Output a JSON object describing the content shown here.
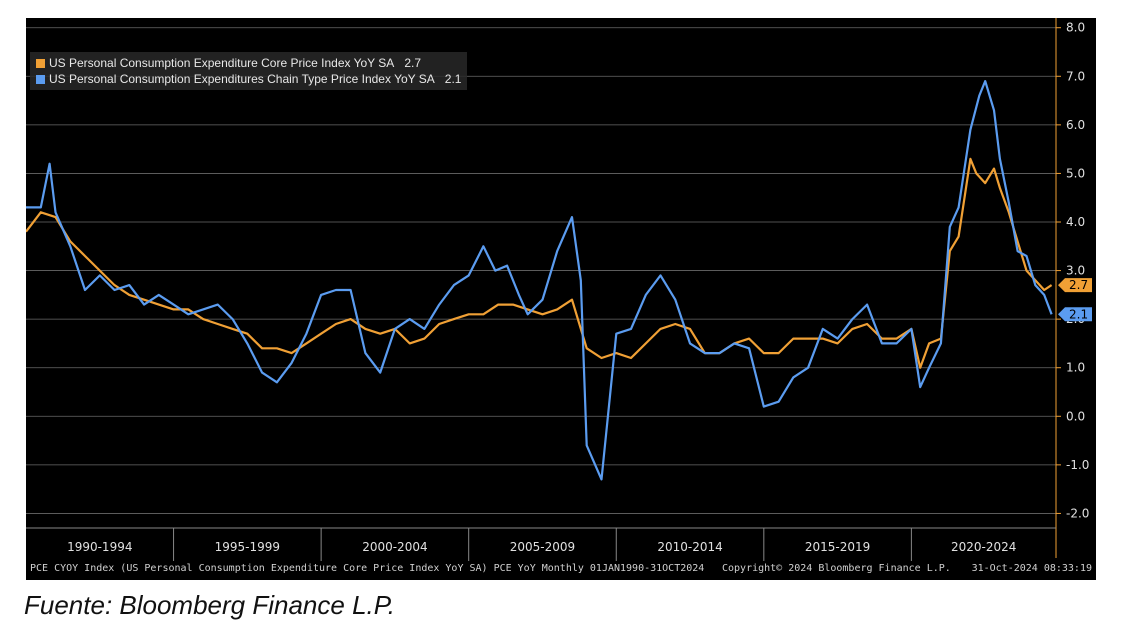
{
  "source_note": "Fuente: Bloomberg Finance L.P.",
  "footer": {
    "left": "PCE CYOY Index (US Personal Consumption Expenditure Core Price Index YoY SA) PCE YoY  Monthly 01JAN1990-31OCT2024",
    "middle": "Copyright© 2024 Bloomberg Finance L.P.",
    "right": "31-Oct-2024 08:33:19"
  },
  "colors": {
    "core": "#f0a035",
    "headline": "#5b9cf0",
    "background": "#000000",
    "grid": "#6a6a6a"
  },
  "chart_data": {
    "type": "line",
    "x_unit": "year",
    "xlim": [
      1990.0,
      2024.9
    ],
    "ylim": [
      -2.3,
      8.2
    ],
    "y_ticks": [
      8.0,
      7.0,
      6.0,
      5.0,
      4.0,
      3.0,
      2.0,
      1.0,
      0.0,
      -1.0,
      -2.0
    ],
    "y_tick_labels": [
      "8.0",
      "7.0",
      "6.0",
      "5.0",
      "4.0",
      "3.0",
      "2.0",
      "1.0",
      "0.0",
      "-1.0",
      "-2.0"
    ],
    "x_bands": [
      "1990-1994",
      "1995-1999",
      "2000-2004",
      "2005-2009",
      "2010-2014",
      "2015-2019",
      "2020-2024"
    ],
    "x_band_breaks": [
      1990,
      1995,
      2000,
      2005,
      2010,
      2015,
      2020,
      2025
    ],
    "grid": true,
    "legend_position": "top-left",
    "series": [
      {
        "name": "US Personal Consumption Expenditure Core Price Index YoY SA",
        "last_value": "2.7",
        "color": "#f0a035",
        "x": [
          1990.0,
          1990.5,
          1991.0,
          1991.5,
          1992.0,
          1992.5,
          1993.0,
          1993.5,
          1994.0,
          1994.5,
          1995.0,
          1995.5,
          1996.0,
          1996.5,
          1997.0,
          1997.5,
          1998.0,
          1998.5,
          1999.0,
          1999.5,
          2000.0,
          2000.5,
          2001.0,
          2001.5,
          2002.0,
          2002.5,
          2003.0,
          2003.5,
          2004.0,
          2004.5,
          2005.0,
          2005.5,
          2006.0,
          2006.5,
          2007.0,
          2007.5,
          2008.0,
          2008.5,
          2009.0,
          2009.5,
          2010.0,
          2010.5,
          2011.0,
          2011.5,
          2012.0,
          2012.5,
          2013.0,
          2013.5,
          2014.0,
          2014.5,
          2015.0,
          2015.5,
          2016.0,
          2016.5,
          2017.0,
          2017.5,
          2018.0,
          2018.5,
          2019.0,
          2019.5,
          2020.0,
          2020.3,
          2020.6,
          2021.0,
          2021.3,
          2021.6,
          2022.0,
          2022.2,
          2022.5,
          2022.8,
          2023.0,
          2023.3,
          2023.6,
          2023.9,
          2024.2,
          2024.5,
          2024.75
        ],
        "y": [
          3.8,
          4.2,
          4.1,
          3.6,
          3.3,
          3.0,
          2.7,
          2.5,
          2.4,
          2.3,
          2.2,
          2.2,
          2.0,
          1.9,
          1.8,
          1.7,
          1.4,
          1.4,
          1.3,
          1.5,
          1.7,
          1.9,
          2.0,
          1.8,
          1.7,
          1.8,
          1.5,
          1.6,
          1.9,
          2.0,
          2.1,
          2.1,
          2.3,
          2.3,
          2.2,
          2.1,
          2.2,
          2.4,
          1.4,
          1.2,
          1.3,
          1.2,
          1.5,
          1.8,
          1.9,
          1.8,
          1.3,
          1.3,
          1.5,
          1.6,
          1.3,
          1.3,
          1.6,
          1.6,
          1.6,
          1.5,
          1.8,
          1.9,
          1.6,
          1.6,
          1.8,
          1.0,
          1.5,
          1.6,
          3.4,
          3.7,
          5.3,
          5.0,
          4.8,
          5.1,
          4.7,
          4.2,
          3.6,
          3.0,
          2.8,
          2.6,
          2.7
        ]
      },
      {
        "name": "US Personal Consumption Expenditures Chain Type Price Index YoY SA",
        "last_value": "2.1",
        "color": "#5b9cf0",
        "x": [
          1990.0,
          1990.5,
          1990.8,
          1991.0,
          1991.5,
          1992.0,
          1992.5,
          1993.0,
          1993.5,
          1994.0,
          1994.5,
          1995.0,
          1995.5,
          1996.0,
          1996.5,
          1997.0,
          1997.5,
          1998.0,
          1998.5,
          1999.0,
          1999.5,
          2000.0,
          2000.5,
          2001.0,
          2001.5,
          2002.0,
          2002.5,
          2003.0,
          2003.5,
          2004.0,
          2004.5,
          2005.0,
          2005.5,
          2005.9,
          2006.3,
          2006.7,
          2007.0,
          2007.5,
          2008.0,
          2008.5,
          2008.8,
          2009.0,
          2009.5,
          2010.0,
          2010.5,
          2011.0,
          2011.5,
          2012.0,
          2012.5,
          2013.0,
          2013.5,
          2014.0,
          2014.5,
          2015.0,
          2015.5,
          2016.0,
          2016.5,
          2017.0,
          2017.5,
          2018.0,
          2018.5,
          2019.0,
          2019.5,
          2020.0,
          2020.3,
          2020.6,
          2021.0,
          2021.3,
          2021.6,
          2022.0,
          2022.3,
          2022.5,
          2022.8,
          2023.0,
          2023.3,
          2023.6,
          2023.9,
          2024.2,
          2024.5,
          2024.75
        ],
        "y": [
          4.3,
          4.3,
          5.2,
          4.2,
          3.5,
          2.6,
          2.9,
          2.6,
          2.7,
          2.3,
          2.5,
          2.3,
          2.1,
          2.2,
          2.3,
          2.0,
          1.5,
          0.9,
          0.7,
          1.1,
          1.7,
          2.5,
          2.6,
          2.6,
          1.3,
          0.9,
          1.8,
          2.0,
          1.8,
          2.3,
          2.7,
          2.9,
          3.5,
          3.0,
          3.1,
          2.5,
          2.1,
          2.4,
          3.4,
          4.1,
          2.8,
          -0.6,
          -1.3,
          1.7,
          1.8,
          2.5,
          2.9,
          2.4,
          1.5,
          1.3,
          1.3,
          1.5,
          1.4,
          0.2,
          0.3,
          0.8,
          1.0,
          1.8,
          1.6,
          2.0,
          2.3,
          1.5,
          1.5,
          1.8,
          0.6,
          1.0,
          1.5,
          3.9,
          4.3,
          5.9,
          6.6,
          6.9,
          6.3,
          5.3,
          4.4,
          3.4,
          3.3,
          2.7,
          2.5,
          2.1
        ]
      }
    ]
  }
}
